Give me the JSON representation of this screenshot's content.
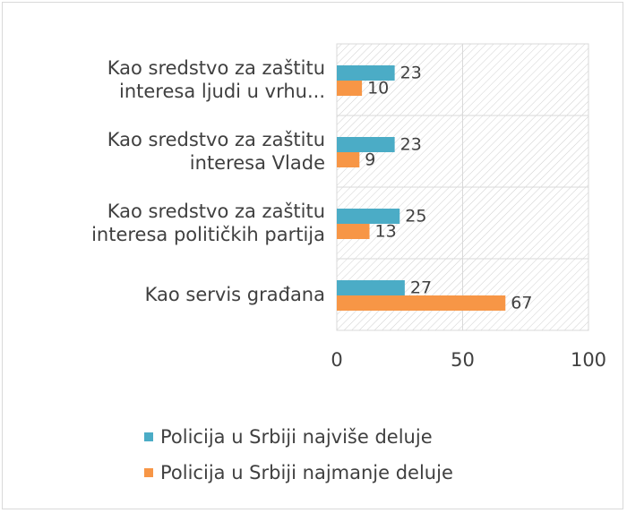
{
  "chart_data": {
    "type": "bar",
    "orientation": "horizontal",
    "categories": [
      [
        "Kao sredstvo za zaštitu",
        "interesa ljudi u vrhu..."
      ],
      [
        "Kao sredstvo za zaštitu",
        "interesa Vlade"
      ],
      [
        "Kao sredstvo za zaštitu",
        "interesa političkih partija"
      ],
      [
        "Kao servis građana"
      ]
    ],
    "series": [
      {
        "name": "Policija u Srbiji najviše deluje",
        "color": "#4bacc6",
        "values": [
          23,
          23,
          25,
          27
        ]
      },
      {
        "name": "Policija u Srbiji najmanje deluje",
        "color": "#f79646",
        "values": [
          10,
          9,
          13,
          67
        ]
      }
    ],
    "xlim": [
      0,
      100
    ],
    "xticks": [
      "0",
      "50",
      "100"
    ],
    "grid": "vertical gridlines, hatched plot background",
    "legend_position": "bottom"
  }
}
